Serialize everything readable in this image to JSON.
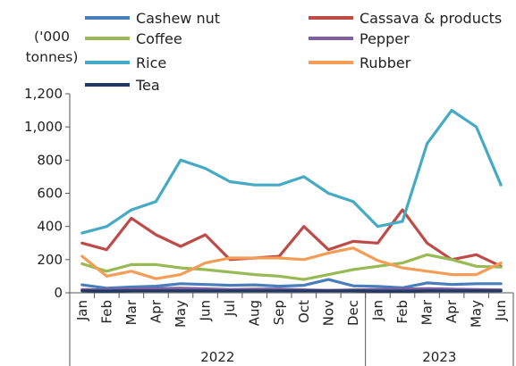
{
  "chart_data": {
    "type": "line",
    "ylabel": "('000 tonnes)",
    "ylim": [
      0,
      1200
    ],
    "yticks": [
      0,
      200,
      400,
      600,
      800,
      1000,
      1200
    ],
    "ytick_labels": [
      "0",
      "200",
      "400",
      "600",
      "800",
      "1,000",
      "1,200"
    ],
    "grid": false,
    "legend_position": "top",
    "categories": [
      "Jan",
      "Feb",
      "Mar",
      "Apr",
      "May",
      "Jun",
      "Jul",
      "Aug",
      "Sep",
      "Oct",
      "Nov",
      "Dec",
      "Jan",
      "Feb",
      "Mar",
      "Apr",
      "May",
      "Jun"
    ],
    "year_groups": [
      {
        "label": "2022",
        "count": 12
      },
      {
        "label": "2023",
        "count": 6
      }
    ],
    "series": [
      {
        "name": "Cashew nut",
        "color": "#4a7ebb",
        "values": [
          48,
          28,
          35,
          40,
          55,
          50,
          45,
          48,
          40,
          45,
          80,
          42,
          38,
          30,
          60,
          50,
          55,
          55
        ]
      },
      {
        "name": "Cassava & products",
        "color": "#be4b48",
        "values": [
          300,
          260,
          450,
          350,
          280,
          350,
          200,
          210,
          220,
          400,
          260,
          310,
          300,
          500,
          300,
          200,
          230,
          160
        ]
      },
      {
        "name": "Coffee",
        "color": "#98b954",
        "values": [
          175,
          130,
          170,
          170,
          150,
          140,
          125,
          110,
          100,
          80,
          110,
          140,
          160,
          180,
          230,
          200,
          160,
          155
        ]
      },
      {
        "name": "Pepper",
        "color": "#7d60a0",
        "values": [
          20,
          18,
          22,
          25,
          28,
          24,
          20,
          22,
          22,
          18,
          15,
          18,
          20,
          22,
          25,
          22,
          20,
          18
        ]
      },
      {
        "name": "Rice",
        "color": "#46aac5",
        "values": [
          360,
          400,
          500,
          550,
          800,
          750,
          670,
          650,
          650,
          700,
          600,
          550,
          400,
          430,
          900,
          1100,
          1000,
          650
        ]
      },
      {
        "name": "Rubber",
        "color": "#f59d56",
        "values": [
          220,
          100,
          130,
          85,
          110,
          180,
          210,
          210,
          210,
          200,
          240,
          270,
          195,
          150,
          130,
          110,
          110,
          180
        ]
      },
      {
        "name": "Tea",
        "color": "#1f3864",
        "values": [
          12,
          10,
          12,
          12,
          12,
          12,
          12,
          12,
          12,
          12,
          12,
          12,
          10,
          10,
          12,
          12,
          12,
          12
        ]
      }
    ]
  }
}
